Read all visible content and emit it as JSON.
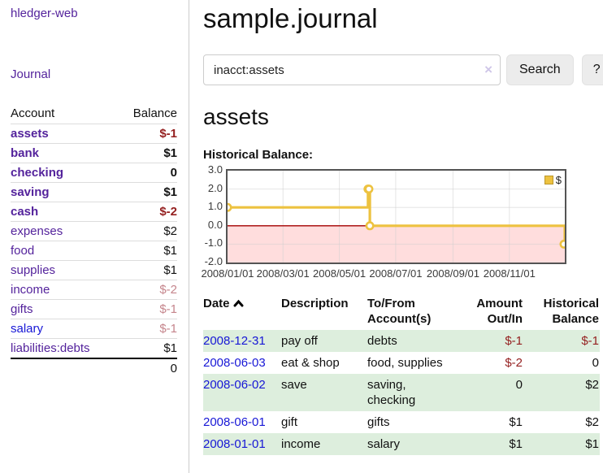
{
  "colors": {
    "link_purple": "#54239c",
    "link_blue": "#1717d6",
    "negative": "#941f1f",
    "muted_negative": "#c5858c",
    "row_stripe": "#ddeedd",
    "series_gold": "#edc240",
    "negative_region_fill": "#ffdddd",
    "zero_line": "#a40000"
  },
  "sidebar": {
    "app_title": "hledger-web",
    "journal_link": "Journal",
    "accounts": {
      "headers": {
        "account": "Account",
        "balance": "Balance"
      },
      "rows": [
        {
          "name": "assets",
          "balance": "$-1",
          "indent": 1,
          "bold": true,
          "balance_style": "negative"
        },
        {
          "name": "bank",
          "balance": "$1",
          "indent": 2,
          "bold": true,
          "balance_style": "normal"
        },
        {
          "name": "checking",
          "balance": "0",
          "indent": 3,
          "bold": true,
          "balance_style": "normal"
        },
        {
          "name": "saving",
          "balance": "$1",
          "indent": 3,
          "bold": true,
          "balance_style": "normal"
        },
        {
          "name": "cash",
          "balance": "$-2",
          "indent": 2,
          "bold": true,
          "balance_style": "negative"
        },
        {
          "name": "expenses",
          "balance": "$2",
          "indent": 1,
          "bold": false,
          "balance_style": "normal"
        },
        {
          "name": "food",
          "balance": "$1",
          "indent": 2,
          "bold": false,
          "balance_style": "normal"
        },
        {
          "name": "supplies",
          "balance": "$1",
          "indent": 2,
          "bold": false,
          "balance_style": "normal"
        },
        {
          "name": "income",
          "balance": "$-2",
          "indent": 1,
          "bold": false,
          "balance_style": "muted-negative"
        },
        {
          "name": "gifts",
          "balance": "$-1",
          "indent": 2,
          "bold": false,
          "balance_style": "muted-negative"
        },
        {
          "name": "salary",
          "balance": "$-1",
          "indent": 2,
          "bold": false,
          "balance_style": "muted-negative",
          "link_color": "blue"
        },
        {
          "name": "liabilities:debts",
          "balance": "$1",
          "indent": 1,
          "bold": false,
          "balance_style": "normal"
        }
      ],
      "total": "0"
    }
  },
  "main": {
    "title": "sample.journal",
    "search": {
      "value": "inacct:assets",
      "clear_icon": "×",
      "button_label": "Search",
      "help_label": "?"
    },
    "account_heading": "assets",
    "chart_label": "Historical Balance:",
    "register": {
      "headers": {
        "date": "Date",
        "description": "Description",
        "accounts": "To/From Account(s)",
        "amount": "Amount Out/In",
        "balance": "Historical Balance"
      },
      "sort_icon": "chevron-up-icon",
      "rows": [
        {
          "date": "2008-12-31",
          "description": "pay off",
          "accounts": "debts",
          "amount": "$-1",
          "amount_negative": true,
          "balance": "$-1",
          "balance_negative": true,
          "stripe": true
        },
        {
          "date": "2008-06-03",
          "description": "eat & shop",
          "accounts": "food, supplies",
          "amount": "$-2",
          "amount_negative": true,
          "balance": "0",
          "balance_negative": false,
          "stripe": false
        },
        {
          "date": "2008-06-02",
          "description": "save",
          "accounts": "saving, checking",
          "amount": "0",
          "amount_negative": false,
          "balance": "$2",
          "balance_negative": false,
          "stripe": true
        },
        {
          "date": "2008-06-01",
          "description": "gift",
          "accounts": "gifts",
          "amount": "$1",
          "amount_negative": false,
          "balance": "$2",
          "balance_negative": false,
          "stripe": false
        },
        {
          "date": "2008-01-01",
          "description": "income",
          "accounts": "salary",
          "amount": "$1",
          "amount_negative": false,
          "balance": "$1",
          "balance_negative": false,
          "stripe": true
        }
      ]
    }
  },
  "chart_data": {
    "type": "line",
    "step": true,
    "title": "Historical Balance",
    "series": [
      {
        "name": "$",
        "color": "#edc240",
        "points": [
          {
            "date": "2008-01-01",
            "value": 1
          },
          {
            "date": "2008-06-01",
            "value": 2
          },
          {
            "date": "2008-06-02",
            "value": 2
          },
          {
            "date": "2008-06-03",
            "value": 0
          },
          {
            "date": "2008-12-31",
            "value": -1
          }
        ]
      }
    ],
    "x_range": [
      "2008-01-01",
      "2008-12-31"
    ],
    "x_ticks": [
      "2008/01/01",
      "2008/03/01",
      "2008/05/01",
      "2008/07/01",
      "2008/09/01",
      "2008/11/01"
    ],
    "y_ticks": [
      3.0,
      2.0,
      1.0,
      0.0,
      -1.0,
      -2.0
    ],
    "ylim": [
      -2,
      3
    ],
    "grid": true,
    "legend": {
      "label": "$",
      "position": "top-right"
    }
  }
}
